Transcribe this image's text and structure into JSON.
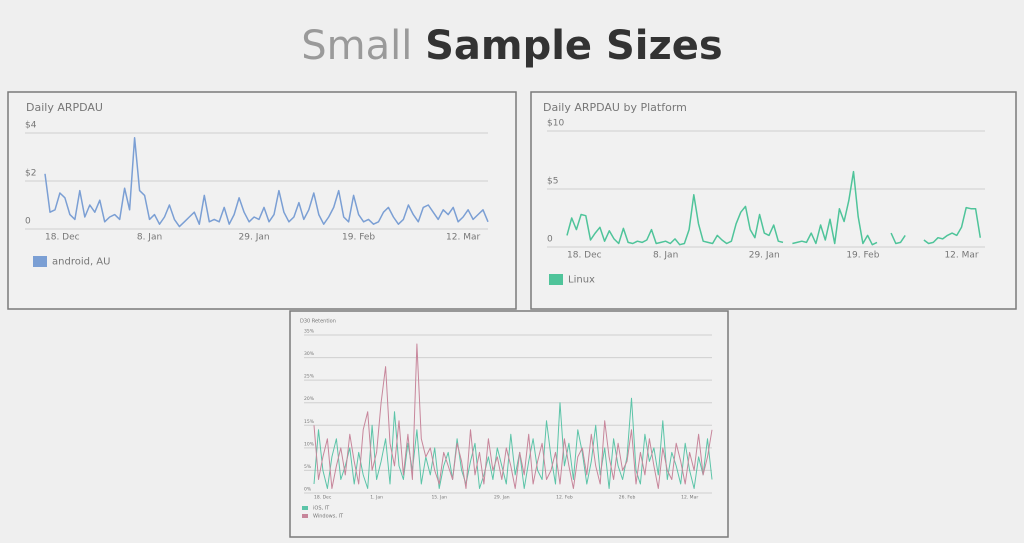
{
  "slide_title": {
    "light": "Small",
    "bold": "Sample Sizes"
  },
  "chart_data": [
    {
      "type": "line",
      "title": "Daily ARPDAU",
      "categories": [
        "18. Dec",
        null,
        null,
        null,
        null,
        null,
        null,
        null,
        null,
        null,
        null,
        null,
        null,
        null,
        null,
        null,
        null,
        null,
        null,
        null,
        null,
        "8. Jan",
        null,
        null,
        null,
        null,
        null,
        null,
        null,
        null,
        null,
        null,
        null,
        null,
        null,
        null,
        null,
        null,
        null,
        null,
        null,
        null,
        "29. Jan",
        null,
        null,
        null,
        null,
        null,
        null,
        null,
        null,
        null,
        null,
        null,
        null,
        null,
        null,
        null,
        null,
        null,
        null,
        null,
        null,
        "19. Feb",
        null,
        null,
        null,
        null,
        null,
        null,
        null,
        null,
        null,
        null,
        null,
        null,
        null,
        null,
        null,
        null,
        null,
        null,
        null,
        null,
        "12. Mar",
        null,
        null,
        null,
        null,
        null
      ],
      "series": [
        {
          "name": "android, AU",
          "color": "#7b9fd4",
          "values": [
            2.3,
            0.7,
            0.8,
            1.5,
            1.3,
            0.6,
            0.4,
            1.6,
            0.5,
            1.0,
            0.7,
            1.2,
            0.3,
            0.5,
            0.6,
            0.4,
            1.7,
            0.8,
            3.8,
            1.6,
            1.4,
            0.4,
            0.6,
            0.2,
            0.5,
            1.0,
            0.4,
            0.1,
            0.3,
            0.5,
            0.7,
            0.2,
            1.4,
            0.3,
            0.4,
            0.3,
            0.9,
            0.2,
            0.6,
            1.3,
            0.7,
            0.3,
            0.5,
            0.4,
            0.9,
            0.3,
            0.6,
            1.6,
            0.7,
            0.3,
            0.5,
            1.1,
            0.4,
            0.8,
            1.5,
            0.6,
            0.2,
            0.5,
            0.9,
            1.6,
            0.5,
            0.3,
            1.4,
            0.6,
            0.3,
            0.4,
            0.2,
            0.3,
            0.7,
            0.9,
            0.5,
            0.2,
            0.4,
            1.0,
            0.6,
            0.3,
            0.9,
            1.0,
            0.7,
            0.4,
            0.8,
            0.6,
            0.9,
            0.3,
            0.5,
            0.8,
            0.4,
            0.6,
            0.8,
            0.3
          ]
        }
      ],
      "ylim": [
        0,
        4
      ],
      "yticks": [
        0,
        {
          "value": 2,
          "label": "$2"
        },
        {
          "value": 4,
          "label": "$4"
        }
      ],
      "grid": true
    },
    {
      "type": "line",
      "title": "Daily ARPDAU by Platform",
      "categories": [
        "18. Dec",
        null,
        null,
        null,
        null,
        null,
        null,
        null,
        null,
        null,
        null,
        null,
        null,
        null,
        null,
        null,
        null,
        null,
        null,
        null,
        null,
        "8. Jan",
        null,
        null,
        null,
        null,
        null,
        null,
        null,
        null,
        null,
        null,
        null,
        null,
        null,
        null,
        null,
        null,
        null,
        null,
        null,
        null,
        "29. Jan",
        null,
        null,
        null,
        null,
        null,
        null,
        null,
        null,
        null,
        null,
        null,
        null,
        null,
        null,
        null,
        null,
        null,
        null,
        null,
        null,
        "19. Feb",
        null,
        null,
        null,
        null,
        null,
        null,
        null,
        null,
        null,
        null,
        null,
        null,
        null,
        null,
        null,
        null,
        null,
        null,
        null,
        null,
        "12. Mar",
        null,
        null,
        null,
        null,
        null
      ],
      "series": [
        {
          "name": "Linux",
          "color": "#4fc49a",
          "values": [
            1.0,
            2.5,
            1.5,
            2.8,
            2.7,
            0.6,
            1.2,
            1.7,
            0.5,
            1.4,
            0.7,
            0.3,
            1.6,
            0.4,
            0.3,
            0.5,
            0.4,
            0.6,
            1.5,
            0.3,
            0.4,
            0.5,
            0.3,
            0.7,
            0.2,
            0.3,
            1.5,
            4.5,
            2.0,
            0.5,
            0.4,
            0.3,
            1.0,
            0.6,
            0.3,
            0.5,
            2.0,
            3.0,
            3.5,
            1.5,
            0.8,
            2.8,
            1.2,
            1.0,
            1.9,
            0.5,
            0.4,
            null,
            0.3,
            0.4,
            0.5,
            0.4,
            1.2,
            0.3,
            1.9,
            0.6,
            2.4,
            0.3,
            3.3,
            2.2,
            4.0,
            6.5,
            2.6,
            0.3,
            1.0,
            0.2,
            0.4,
            null,
            null,
            1.2,
            0.3,
            0.4,
            1.0,
            null,
            null,
            null,
            0.6,
            0.3,
            0.4,
            0.8,
            0.7,
            1.0,
            1.2,
            1.0,
            1.7,
            3.4,
            3.3,
            3.3,
            0.8,
            null
          ]
        }
      ],
      "ylim": [
        0,
        10
      ],
      "yticks": [
        0,
        {
          "value": 5,
          "label": "$5"
        },
        {
          "value": 10,
          "label": "$10"
        }
      ],
      "grid": true
    },
    {
      "type": "line",
      "title": "D30 Retention",
      "categories": [
        "18. Dec",
        null,
        null,
        null,
        null,
        null,
        null,
        null,
        null,
        null,
        null,
        null,
        null,
        null,
        "1. Jan",
        null,
        null,
        null,
        null,
        null,
        null,
        null,
        null,
        null,
        null,
        null,
        null,
        null,
        "15. Jan",
        null,
        null,
        null,
        null,
        null,
        null,
        null,
        null,
        null,
        null,
        null,
        null,
        null,
        "29. Jan",
        null,
        null,
        null,
        null,
        null,
        null,
        null,
        null,
        null,
        null,
        null,
        null,
        null,
        "12. Feb",
        null,
        null,
        null,
        null,
        null,
        null,
        null,
        null,
        null,
        null,
        null,
        null,
        null,
        "26. Feb",
        null,
        null,
        null,
        null,
        null,
        null,
        null,
        null,
        null,
        null,
        null,
        null,
        null,
        "12. Mar",
        null,
        null,
        null,
        null,
        null
      ],
      "series": [
        {
          "name": "iOS, IT",
          "color": "#5cc4a8",
          "values": [
            2,
            14,
            5,
            1,
            8,
            12,
            3,
            6,
            10,
            2,
            9,
            4,
            1,
            15,
            3,
            7,
            12,
            2,
            18,
            6,
            3,
            11,
            5,
            14,
            2,
            8,
            4,
            10,
            1,
            6,
            9,
            3,
            12,
            5,
            2,
            7,
            11,
            1,
            4,
            8,
            3,
            10,
            6,
            2,
            13,
            4,
            9,
            1,
            7,
            12,
            5,
            3,
            16,
            8,
            2,
            20,
            6,
            11,
            3,
            14,
            9,
            2,
            7,
            15,
            4,
            10,
            1,
            12,
            6,
            3,
            8,
            21,
            5,
            2,
            13,
            7,
            10,
            4,
            16,
            3,
            9,
            6,
            2,
            11,
            5,
            1,
            8,
            4,
            12,
            3
          ]
        },
        {
          "name": "Windows, IT",
          "color": "#c7869b",
          "values": [
            15,
            3,
            8,
            12,
            1,
            6,
            10,
            4,
            13,
            7,
            2,
            14,
            18,
            5,
            9,
            20,
            28,
            11,
            6,
            16,
            4,
            13,
            3,
            33,
            12,
            8,
            10,
            5,
            2,
            9,
            6,
            3,
            11,
            7,
            1,
            14,
            4,
            9,
            2,
            12,
            5,
            8,
            3,
            10,
            6,
            1,
            9,
            4,
            13,
            2,
            7,
            11,
            3,
            5,
            9,
            2,
            12,
            6,
            1,
            8,
            10,
            4,
            13,
            6,
            2,
            16,
            8,
            3,
            11,
            5,
            7,
            14,
            2,
            9,
            4,
            12,
            6,
            1,
            10,
            5,
            3,
            11,
            7,
            2,
            9,
            5,
            13,
            4,
            8,
            14
          ]
        }
      ],
      "ylim": [
        0,
        35
      ],
      "yticks": [
        {
          "value": 0,
          "label": "0%"
        },
        {
          "value": 5,
          "label": "5%"
        },
        {
          "value": 10,
          "label": "10%"
        },
        {
          "value": 15,
          "label": "15%"
        },
        {
          "value": 20,
          "label": "20%"
        },
        {
          "value": 25,
          "label": "25%"
        },
        {
          "value": 30,
          "label": "30%"
        },
        {
          "value": 35,
          "label": "35%"
        }
      ],
      "grid": true
    }
  ]
}
